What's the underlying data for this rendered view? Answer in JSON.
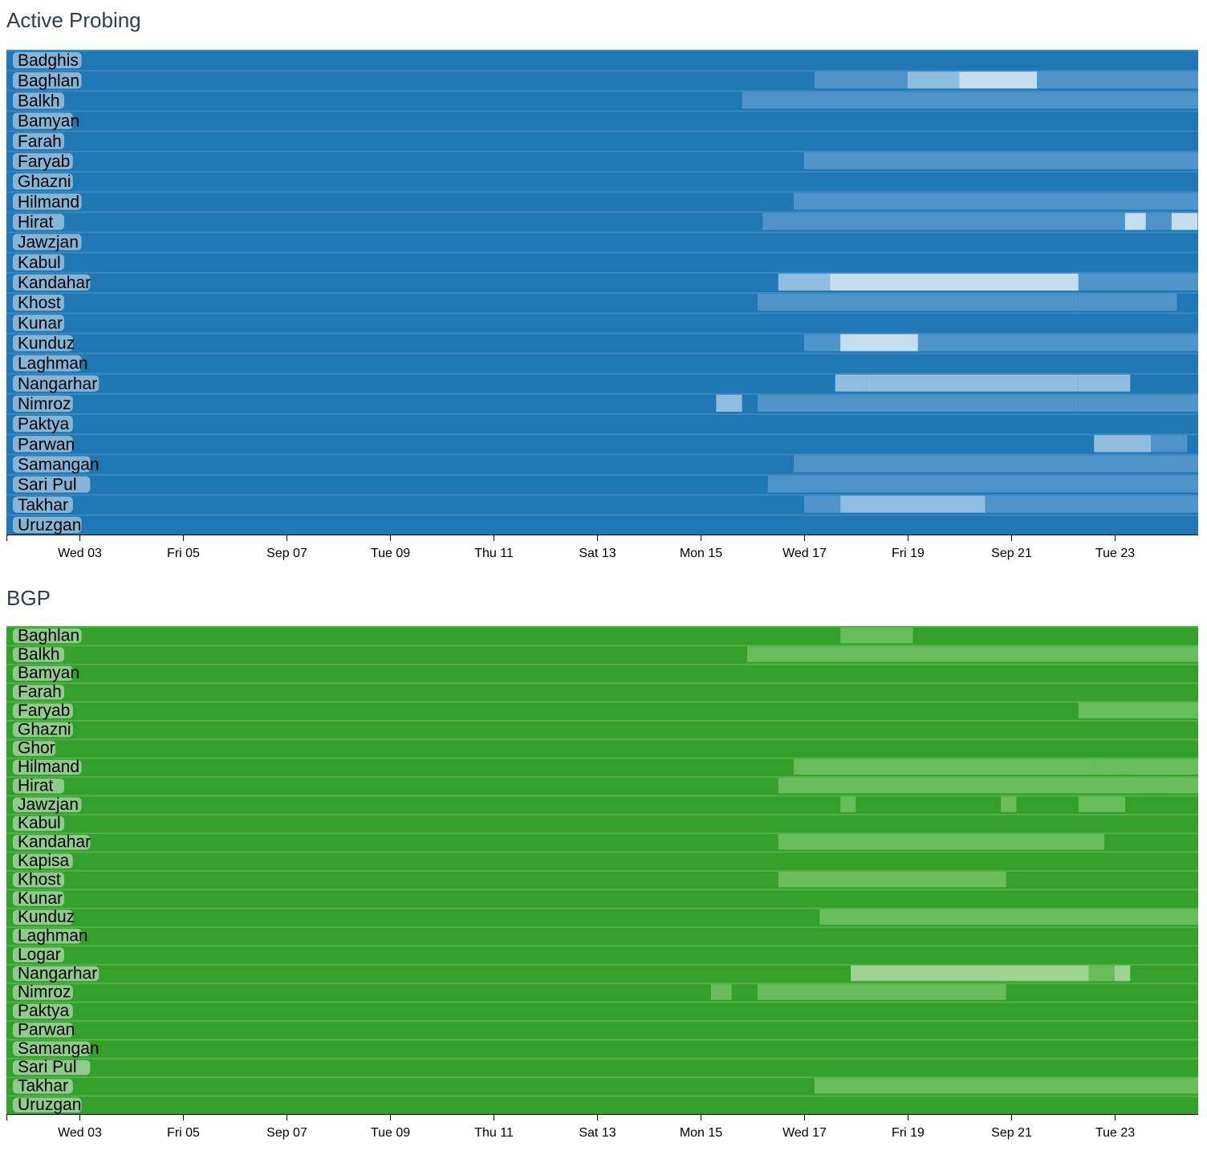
{
  "chart_data": [
    {
      "type": "heatmap",
      "title": "Active Probing",
      "x_ticks": [
        "Wed 03",
        "Fri 05",
        "Sep 07",
        "Tue 09",
        "Thu 11",
        "Sat 13",
        "Mon 15",
        "Wed 17",
        "Fri 19",
        "Sep 21",
        "Tue 23"
      ],
      "x_range_days": [
        0,
        23
      ],
      "colors": {
        "base": "#1f77b4",
        "mid": "#4e94c8",
        "light": "#8fbde0",
        "lighter": "#c4ddef"
      },
      "rows": [
        {
          "name": "Badghis",
          "segments": []
        },
        {
          "name": "Baghlan",
          "segments": [
            [
              15.2,
              17.0,
              "mid"
            ],
            [
              17.0,
              18.0,
              "light"
            ],
            [
              18.0,
              19.5,
              "lighter"
            ],
            [
              19.5,
              23.0,
              "mid"
            ]
          ]
        },
        {
          "name": "Balkh",
          "segments": [
            [
              13.8,
              15.9,
              "mid"
            ],
            [
              15.9,
              23.0,
              "mid"
            ]
          ]
        },
        {
          "name": "Bamyan",
          "segments": []
        },
        {
          "name": "Farah",
          "segments": []
        },
        {
          "name": "Faryab",
          "segments": [
            [
              15.0,
              23.0,
              "mid"
            ]
          ]
        },
        {
          "name": "Ghazni",
          "segments": []
        },
        {
          "name": "Hilmand",
          "segments": [
            [
              14.8,
              23.0,
              "mid"
            ]
          ]
        },
        {
          "name": "Hirat",
          "segments": [
            [
              14.2,
              23.0,
              "mid"
            ],
            [
              21.2,
              21.6,
              "lighter"
            ],
            [
              22.1,
              22.6,
              "lighter"
            ]
          ]
        },
        {
          "name": "Jawzjan",
          "segments": []
        },
        {
          "name": "Kabul",
          "segments": []
        },
        {
          "name": "Kandahar",
          "segments": [
            [
              14.5,
              15.5,
              "light"
            ],
            [
              15.5,
              20.3,
              "lighter"
            ],
            [
              20.3,
              22.8,
              "mid"
            ]
          ]
        },
        {
          "name": "Khost",
          "segments": [
            [
              14.1,
              20.3,
              "mid"
            ],
            [
              20.3,
              22.2,
              "mid"
            ]
          ]
        },
        {
          "name": "Kunar",
          "segments": []
        },
        {
          "name": "Kunduz",
          "segments": [
            [
              15.0,
              15.7,
              "mid"
            ],
            [
              15.7,
              17.2,
              "lighter"
            ],
            [
              17.2,
              23.0,
              "mid"
            ]
          ]
        },
        {
          "name": "Laghman",
          "segments": []
        },
        {
          "name": "Nangarhar",
          "segments": [
            [
              15.6,
              16.2,
              "light"
            ],
            [
              16.2,
              20.3,
              "light"
            ],
            [
              20.3,
              21.3,
              "light"
            ]
          ]
        },
        {
          "name": "Nimroz",
          "segments": [
            [
              13.3,
              13.8,
              "light"
            ],
            [
              14.1,
              20.3,
              "mid"
            ],
            [
              20.3,
              22.8,
              "mid"
            ]
          ]
        },
        {
          "name": "Paktya",
          "segments": []
        },
        {
          "name": "Parwan",
          "segments": [
            [
              20.6,
              21.7,
              "light"
            ],
            [
              21.7,
              22.4,
              "mid"
            ]
          ]
        },
        {
          "name": "Samangan",
          "segments": [
            [
              14.8,
              23.0,
              "mid"
            ]
          ]
        },
        {
          "name": "Sari Pul",
          "segments": [
            [
              14.3,
              23.0,
              "mid"
            ]
          ]
        },
        {
          "name": "Takhar",
          "segments": [
            [
              15.0,
              15.7,
              "mid"
            ],
            [
              15.7,
              18.5,
              "light"
            ],
            [
              18.5,
              23.0,
              "mid"
            ]
          ]
        },
        {
          "name": "Uruzgan",
          "segments": []
        }
      ]
    },
    {
      "type": "heatmap",
      "title": "BGP",
      "x_ticks": [
        "Wed 03",
        "Fri 05",
        "Sep 07",
        "Tue 09",
        "Thu 11",
        "Sat 13",
        "Mon 15",
        "Wed 17",
        "Fri 19",
        "Sep 21",
        "Tue 23"
      ],
      "x_range_days": [
        0,
        23
      ],
      "colors": {
        "base": "#33a02c",
        "mid": "#68bd5c",
        "light": "#9bd490",
        "lighter": "#c6e8bf"
      },
      "rows": [
        {
          "name": "Baghlan",
          "segments": [
            [
              15.7,
              17.1,
              "mid"
            ]
          ]
        },
        {
          "name": "Balkh",
          "segments": [
            [
              13.9,
              23.0,
              "mid"
            ]
          ]
        },
        {
          "name": "Bamyan",
          "segments": []
        },
        {
          "name": "Farah",
          "segments": []
        },
        {
          "name": "Faryab",
          "segments": [
            [
              20.3,
              23.0,
              "mid"
            ]
          ]
        },
        {
          "name": "Ghazni",
          "segments": []
        },
        {
          "name": "Ghor",
          "segments": []
        },
        {
          "name": "Hilmand",
          "segments": [
            [
              14.8,
              20.6,
              "mid"
            ],
            [
              20.6,
              22.8,
              "mid"
            ]
          ]
        },
        {
          "name": "Hirat",
          "segments": [
            [
              14.5,
              23.0,
              "mid"
            ],
            [
              21.1,
              21.5,
              "mid"
            ],
            [
              22.0,
              22.4,
              "mid"
            ]
          ]
        },
        {
          "name": "Jawzjan",
          "segments": [
            [
              15.7,
              16.0,
              "mid"
            ],
            [
              18.8,
              19.1,
              "mid"
            ],
            [
              20.3,
              21.2,
              "mid"
            ]
          ]
        },
        {
          "name": "Kabul",
          "segments": []
        },
        {
          "name": "Kandahar",
          "segments": [
            [
              14.5,
              20.8,
              "mid"
            ]
          ]
        },
        {
          "name": "Kapisa",
          "segments": []
        },
        {
          "name": "Khost",
          "segments": [
            [
              14.5,
              18.9,
              "mid"
            ]
          ]
        },
        {
          "name": "Kunar",
          "segments": []
        },
        {
          "name": "Kunduz",
          "segments": [
            [
              15.3,
              23.0,
              "mid"
            ]
          ]
        },
        {
          "name": "Laghman",
          "segments": []
        },
        {
          "name": "Logar",
          "segments": []
        },
        {
          "name": "Nangarhar",
          "segments": [
            [
              15.9,
              20.5,
              "light"
            ],
            [
              20.5,
              21.0,
              "mid"
            ],
            [
              21.0,
              21.3,
              "light"
            ]
          ]
        },
        {
          "name": "Nimroz",
          "segments": [
            [
              13.2,
              13.6,
              "mid"
            ],
            [
              14.1,
              18.9,
              "mid"
            ]
          ]
        },
        {
          "name": "Paktya",
          "segments": []
        },
        {
          "name": "Parwan",
          "segments": []
        },
        {
          "name": "Samangan",
          "segments": []
        },
        {
          "name": "Sari Pul",
          "segments": []
        },
        {
          "name": "Takhar",
          "segments": [
            [
              15.2,
              23.0,
              "mid"
            ]
          ]
        },
        {
          "name": "Uruzgan",
          "segments": []
        }
      ]
    }
  ]
}
